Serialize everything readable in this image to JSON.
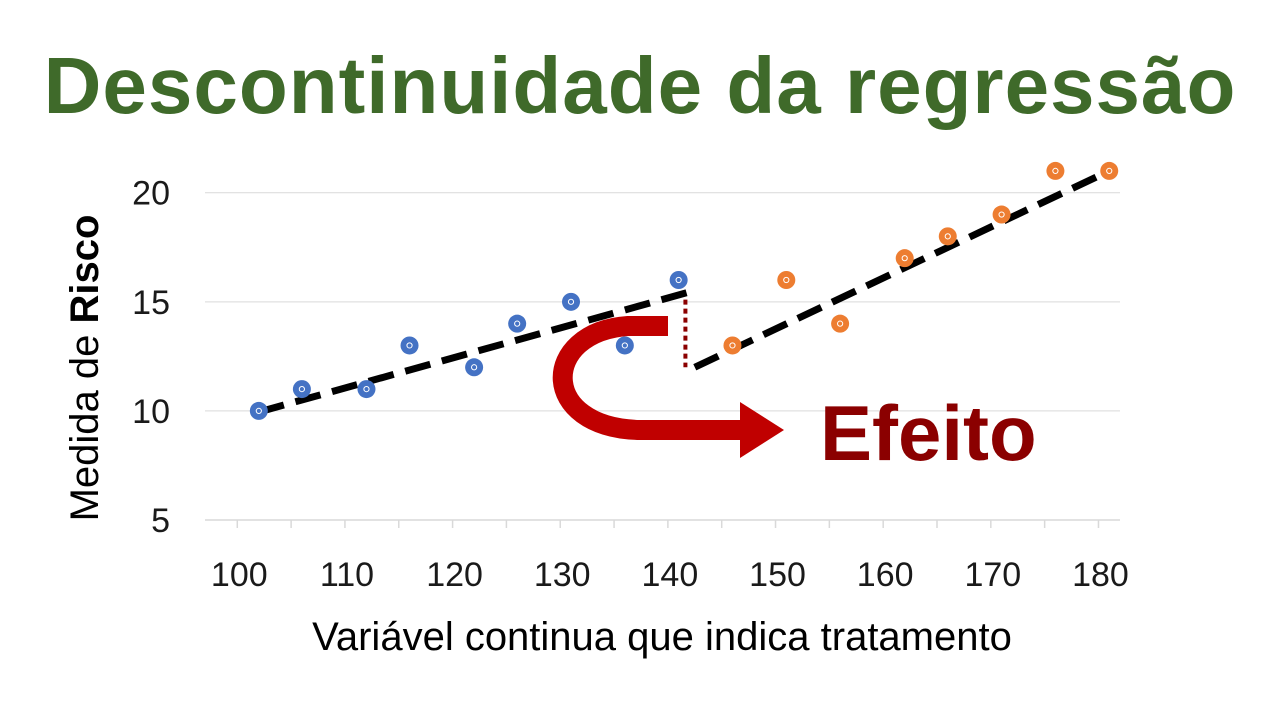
{
  "title": "Descontinuidade da regressão",
  "colors": {
    "title": "#3f6a2a",
    "series_before": "#4472c4",
    "series_after": "#ed7d31",
    "fit_line": "#000000",
    "effect": "#8b0000",
    "arrow": "#c00000",
    "grid": "#d9d9d9"
  },
  "chart_data": {
    "type": "scatter",
    "title": "Descontinuidade da regressão",
    "xlabel": "Variável continua que indica tratamento",
    "ylabel_prefix": "Medida de ",
    "ylabel_bold": "Risco",
    "xlim": [
      97,
      182
    ],
    "ylim": [
      5,
      21.5
    ],
    "x_ticks": [
      100,
      110,
      120,
      130,
      140,
      150,
      160,
      170,
      180
    ],
    "y_ticks": [
      5,
      10,
      15,
      20
    ],
    "grid": "horizontal",
    "cutoff": 142,
    "series": [
      {
        "points": [
          [
            102,
            10
          ],
          [
            106,
            11
          ],
          [
            112,
            11
          ],
          [
            116,
            13
          ],
          [
            122,
            12
          ],
          [
            126,
            14
          ],
          [
            131,
            15
          ],
          [
            136,
            13
          ],
          [
            141,
            16
          ]
        ]
      },
      {
        "points": [
          [
            146,
            13
          ],
          [
            151,
            16
          ],
          [
            156,
            14
          ],
          [
            162,
            17
          ],
          [
            166,
            18
          ],
          [
            171,
            19
          ],
          [
            176,
            21
          ],
          [
            181,
            21
          ]
        ]
      }
    ],
    "fit_lines": [
      {
        "x": [
          102,
          142
        ],
        "y": [
          9.95,
          15.45
        ]
      },
      {
        "x": [
          142.5,
          181
        ],
        "y": [
          12,
          21
        ]
      }
    ],
    "annotation": {
      "label": "Efeito",
      "x": 142,
      "y_from": 15.1,
      "y_to": 12
    }
  }
}
